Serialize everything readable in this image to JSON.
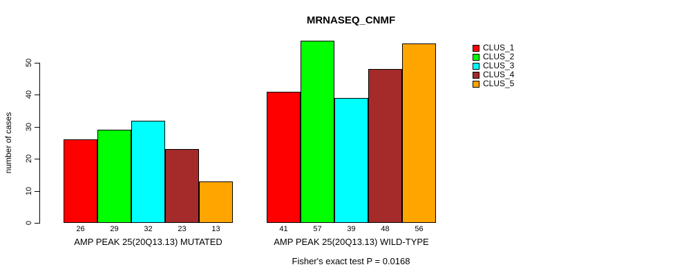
{
  "chart_data": {
    "type": "bar",
    "title": "MRNASEQ_CNMF",
    "xlabel": "",
    "ylabel": "number of cases",
    "yticks": [
      0,
      10,
      20,
      30,
      40,
      50
    ],
    "ylim": [
      0,
      50
    ],
    "grid": false,
    "legend_position": "right",
    "categories": [
      "AMP PEAK 25(20Q13.13) MUTATED",
      "AMP PEAK 25(20Q13.13) WILD-TYPE"
    ],
    "series": [
      {
        "name": "CLUS_1",
        "color": "#FF0000",
        "values": [
          26,
          41
        ]
      },
      {
        "name": "CLUS_2",
        "color": "#00FF00",
        "values": [
          29,
          57
        ]
      },
      {
        "name": "CLUS_3",
        "color": "#00FFFF",
        "values": [
          32,
          39
        ]
      },
      {
        "name": "CLUS_4",
        "color": "#A52A2A",
        "values": [
          23,
          48
        ]
      },
      {
        "name": "CLUS_5",
        "color": "#FFA500",
        "values": [
          13,
          56
        ]
      }
    ],
    "bar_value_labels": [
      [
        26,
        29,
        32,
        23,
        13
      ],
      [
        41,
        57,
        39,
        48,
        56
      ]
    ],
    "annotation": "Fisher's exact test P = 0.0168"
  }
}
